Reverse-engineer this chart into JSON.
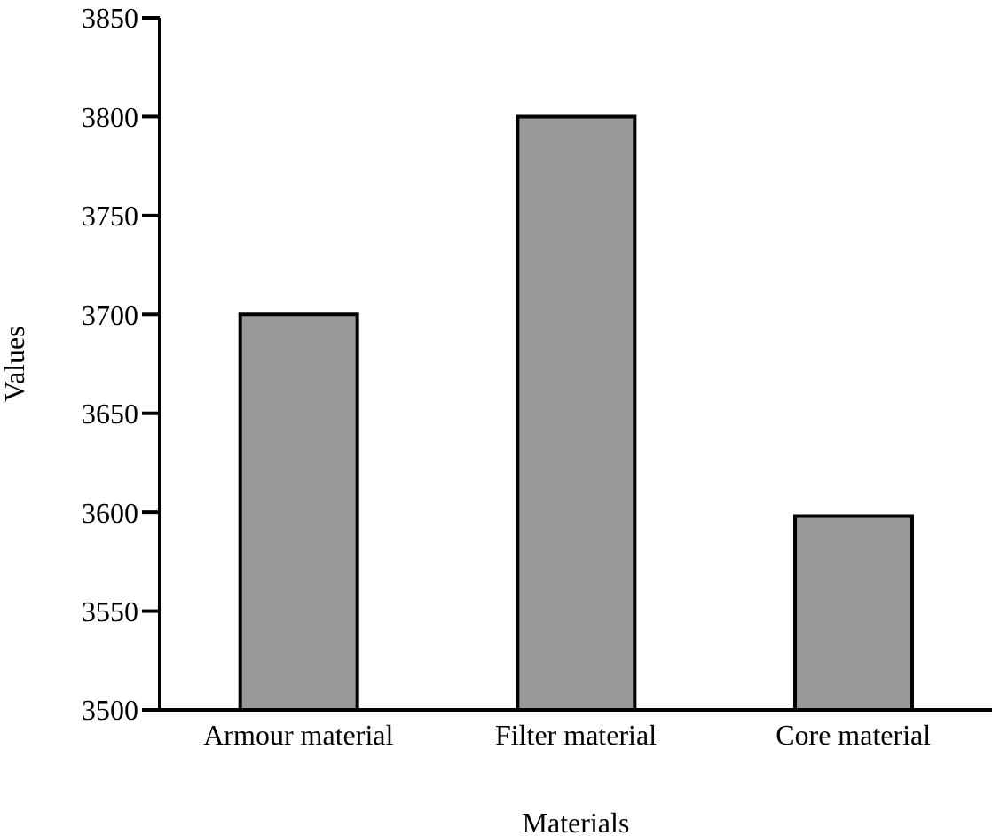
{
  "chart_data": {
    "type": "bar",
    "xlabel": "Materials",
    "ylabel": "Values",
    "categories": [
      "Armour material",
      "Filter material",
      "Core material"
    ],
    "values": [
      3700,
      3800,
      3598
    ],
    "color": "#999999",
    "ylim": [
      3500,
      3850
    ],
    "yticks": [
      3500,
      3550,
      3600,
      3650,
      3700,
      3750,
      3800,
      3850
    ],
    "grid": false
  }
}
